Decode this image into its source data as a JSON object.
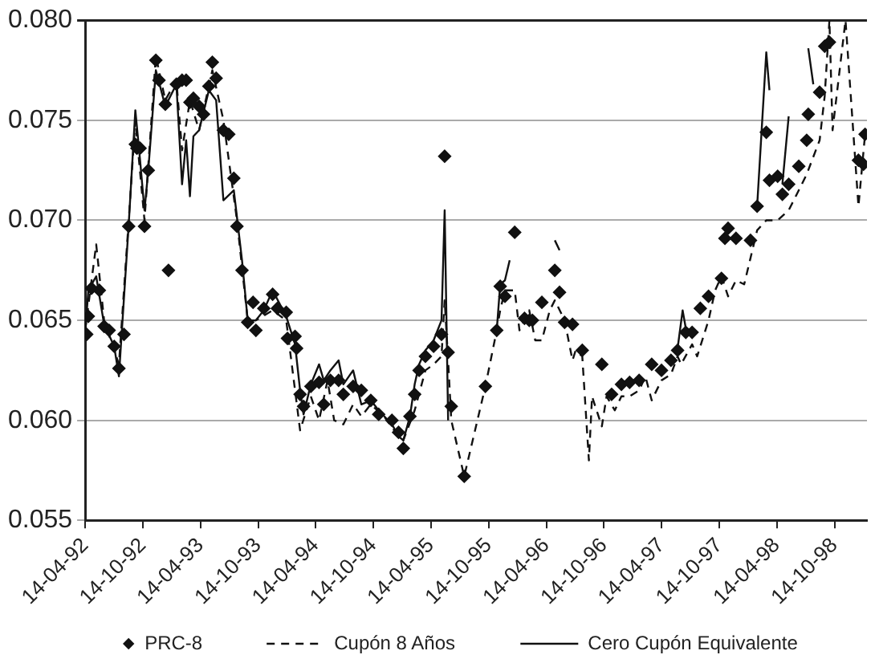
{
  "chart_data": {
    "type": "line",
    "xlim": [
      "1992-04-14",
      "1999-01-25"
    ],
    "xticks": [
      {
        "value": "1992-04-14",
        "label": "14-04-92"
      },
      {
        "value": "1992-10-14",
        "label": "14-10-92"
      },
      {
        "value": "1993-04-14",
        "label": "14-04-93"
      },
      {
        "value": "1993-10-14",
        "label": "14-10-93"
      },
      {
        "value": "1994-04-14",
        "label": "14-04-94"
      },
      {
        "value": "1994-10-14",
        "label": "14-10-94"
      },
      {
        "value": "1995-04-14",
        "label": "14-04-95"
      },
      {
        "value": "1995-10-14",
        "label": "14-10-95"
      },
      {
        "value": "1996-04-14",
        "label": "14-04-96"
      },
      {
        "value": "1996-10-14",
        "label": "14-10-96"
      },
      {
        "value": "1997-04-14",
        "label": "14-04-97"
      },
      {
        "value": "1997-10-14",
        "label": "14-10-97"
      },
      {
        "value": "1998-04-14",
        "label": "14-04-98"
      },
      {
        "value": "1998-10-14",
        "label": "14-10-98"
      }
    ],
    "ylim": [
      0.055,
      0.08
    ],
    "yticks": [
      {
        "value": 0.055,
        "label": "0.055"
      },
      {
        "value": 0.06,
        "label": "0.060"
      },
      {
        "value": 0.065,
        "label": "0.065"
      },
      {
        "value": 0.07,
        "label": "0.070"
      },
      {
        "value": 0.075,
        "label": "0.075"
      },
      {
        "value": 0.08,
        "label": "0.080"
      }
    ],
    "grid": "y",
    "legend": "bottom",
    "series": [
      {
        "name": "PRC-8",
        "type": "scatter",
        "marker": "diamond",
        "color": "#111111",
        "x": [
          "1992-04-19",
          "1992-04-24",
          "1992-05-04",
          "1992-05-29",
          "1992-06-13",
          "1992-06-29",
          "1992-07-15",
          "1992-07-30",
          "1992-08-15",
          "1992-08-30",
          "1992-09-20",
          "1992-09-25",
          "1992-10-05",
          "1992-10-19",
          "1992-10-31",
          "1992-11-24",
          "1992-12-04",
          "1992-12-24",
          "1993-01-03",
          "1993-01-28",
          "1993-02-15",
          "1993-02-28",
          "1993-03-12",
          "1993-03-23",
          "1993-04-10",
          "1993-04-24",
          "1993-05-11",
          "1993-05-22",
          "1993-06-03",
          "1993-06-26",
          "1993-07-13",
          "1993-07-29",
          "1993-08-08",
          "1993-08-24",
          "1993-09-11",
          "1993-09-28",
          "1993-10-07",
          "1993-11-01",
          "1993-11-29",
          "1993-12-14",
          "1994-01-11",
          "1994-01-15",
          "1994-02-08",
          "1994-02-13",
          "1994-02-24",
          "1994-03-07",
          "1994-03-30",
          "1994-04-25",
          "1994-05-10",
          "1994-05-31",
          "1994-06-26",
          "1994-07-11",
          "1994-08-11",
          "1994-09-06",
          "1994-10-06",
          "1994-10-31",
          "1994-12-12",
          "1995-01-02",
          "1995-01-17",
          "1995-02-07",
          "1995-02-22",
          "1995-03-08",
          "1995-03-28",
          "1995-04-23",
          "1995-05-18",
          "1995-05-28",
          "1995-06-08",
          "1995-06-18",
          "1995-07-29",
          "1995-10-04",
          "1995-11-09",
          "1995-11-20",
          "1995-12-05",
          "1996-01-05",
          "1996-02-05",
          "1996-02-20",
          "1996-03-01",
          "1996-03-31",
          "1996-05-11",
          "1996-05-26",
          "1996-06-11",
          "1996-07-06",
          "1996-08-06",
          "1996-10-07",
          "1996-11-07",
          "1996-12-08",
          "1997-01-03",
          "1997-02-02",
          "1997-03-14",
          "1997-04-14",
          "1997-05-14",
          "1997-06-04",
          "1997-06-30",
          "1997-07-20",
          "1997-08-15",
          "1997-09-10",
          "1997-10-21",
          "1997-11-01",
          "1997-11-11",
          "1997-12-06",
          "1998-01-21",
          "1998-02-11",
          "1998-03-12",
          "1998-03-22",
          "1998-04-17",
          "1998-05-02",
          "1998-05-22",
          "1998-06-23",
          "1998-07-18",
          "1998-07-23",
          "1998-08-28",
          "1998-09-13",
          "1998-09-28",
          "1998-12-29",
          "1999-01-14",
          "1999-01-19"
        ],
        "values": [
          0.0643,
          0.0652,
          0.0666,
          0.0665,
          0.0647,
          0.0645,
          0.0637,
          0.0626,
          0.0643,
          0.0697,
          0.0738,
          0.0736,
          0.0736,
          0.0697,
          0.0725,
          0.078,
          0.077,
          0.0758,
          0.0675,
          0.0768,
          0.077,
          0.077,
          0.0759,
          0.0761,
          0.0757,
          0.0753,
          0.0767,
          0.0779,
          0.0771,
          0.0745,
          0.0743,
          0.0721,
          0.0697,
          0.0675,
          0.0649,
          0.0659,
          0.0645,
          0.0656,
          0.0663,
          0.0656,
          0.0654,
          0.0641,
          0.0642,
          0.0636,
          0.0613,
          0.0607,
          0.0617,
          0.0619,
          0.0608,
          0.062,
          0.062,
          0.0613,
          0.0617,
          0.0615,
          0.061,
          0.0603,
          0.06,
          0.0594,
          0.0586,
          0.0602,
          0.0613,
          0.0625,
          0.0632,
          0.0637,
          0.0643,
          0.0732,
          0.0634,
          0.0607,
          0.0572,
          0.0617,
          0.0645,
          0.0667,
          0.0662,
          0.0694,
          0.0651,
          0.065,
          0.065,
          0.0659,
          0.0675,
          0.0664,
          0.0649,
          0.0648,
          0.0635,
          0.0628,
          0.0613,
          0.0618,
          0.0619,
          0.062,
          0.0628,
          0.0625,
          0.063,
          0.0635,
          0.0644,
          0.0644,
          0.0656,
          0.0662,
          0.0671,
          0.0691,
          0.0696,
          0.0691,
          0.069,
          0.0707,
          0.0744,
          0.072,
          0.0722,
          0.0713,
          0.0718,
          0.0727,
          0.074,
          0.0753,
          0.0764,
          0.0787,
          0.0789,
          0.073,
          0.0728,
          0.0743
        ]
      },
      {
        "name": "Cupón 8 Años",
        "type": "line",
        "line_style": "dashed",
        "marker": "none",
        "color": "#111111",
        "x": [
          "1992-04-14",
          "1992-05-19",
          "1992-06-13",
          "1992-07-30",
          "1992-08-30",
          "1992-09-20",
          "1992-10-19",
          "1992-11-24",
          "1992-12-24",
          "1993-01-28",
          "1993-02-15",
          "1993-03-12",
          "1993-04-10",
          "1993-05-22",
          "1993-06-26",
          "1993-08-08",
          "1993-09-11",
          "1993-10-07",
          "1993-11-29",
          "1994-01-11",
          "1994-02-24",
          "1994-03-30",
          "1994-04-25",
          "1994-05-22",
          "1994-06-12",
          "1994-07-11",
          "1994-08-11",
          "1994-09-06",
          "1994-10-06",
          "1994-11-17",
          "1995-01-02",
          "1995-01-17",
          "1995-02-22",
          "1995-03-28",
          "1995-04-23",
          "1995-05-18",
          "1995-05-28",
          "1995-06-08",
          "1995-06-18",
          "1995-07-29",
          "1995-10-04",
          "1995-11-09",
          "1995-11-20",
          "1995-12-05",
          "1996-01-05",
          "1996-01-20",
          "1996-02-20",
          "1996-03-10",
          "1996-03-31",
          "1996-04-25",
          "1996-05-11",
          "1996-06-11",
          "1996-07-06",
          "1996-07-16",
          "1996-08-06",
          "1996-08-27",
          "1996-09-06",
          "1996-10-07",
          "1996-10-22",
          "1996-11-17",
          "1996-12-08",
          "1997-01-03",
          "1997-02-02",
          "1997-02-22",
          "1997-03-14",
          "1997-04-14",
          "1997-05-14",
          "1997-06-04",
          "1997-06-15",
          "1997-07-20",
          "1997-08-05",
          "1997-09-10",
          "1997-10-01",
          "1997-10-21",
          "1997-11-11",
          "1997-12-06",
          "1998-01-01",
          "1998-02-11",
          "1998-03-12",
          "1998-04-17",
          "1998-05-22",
          "1998-06-23",
          "1998-07-18",
          "1998-08-28",
          "1998-09-13",
          "1998-09-28",
          "1998-10-08",
          "1998-11-18",
          "1998-12-29",
          "1999-01-19"
        ],
        "values": [
          0.0645,
          0.0688,
          0.065,
          0.0628,
          0.07,
          0.075,
          0.07,
          0.0782,
          0.076,
          0.077,
          0.0735,
          0.076,
          0.0745,
          0.0775,
          0.075,
          0.07,
          0.065,
          0.065,
          0.0655,
          0.065,
          0.0595,
          0.0612,
          0.06,
          0.062,
          0.06,
          0.0598,
          0.0608,
          0.0602,
          0.0608,
          0.0602,
          0.0592,
          0.059,
          0.0605,
          0.0625,
          0.0628,
          0.0632,
          0.066,
          0.063,
          0.06,
          0.0572,
          0.0617,
          0.0645,
          0.0655,
          0.0665,
          0.0665,
          0.0645,
          0.0655,
          0.064,
          0.064,
          0.0655,
          0.066,
          0.065,
          0.063,
          0.0635,
          0.0632,
          0.058,
          0.0612,
          0.0597,
          0.0612,
          0.0605,
          0.0612,
          0.0612,
          0.0615,
          0.0622,
          0.061,
          0.062,
          0.0623,
          0.0632,
          0.0628,
          0.0638,
          0.0632,
          0.065,
          0.0665,
          0.0672,
          0.0662,
          0.067,
          0.0668,
          0.0695,
          0.07,
          0.07,
          0.0705,
          0.0715,
          0.0723,
          0.074,
          0.0762,
          0.08,
          0.0745,
          0.08,
          0.0707,
          0.0743
        ]
      },
      {
        "name": "Cero Cupón Equivalente",
        "type": "line",
        "line_style": "solid",
        "marker": "none",
        "color": "#111111",
        "x": [
          "1992-04-14",
          "1992-04-24",
          "1992-05-19",
          "1992-06-13",
          "1992-07-15",
          "1992-07-30",
          "1992-08-30",
          "1992-09-20",
          "1992-10-05",
          "1992-10-19",
          "1992-10-31",
          "1992-11-24",
          "1992-12-24",
          "1993-01-28",
          "1993-02-15",
          "1993-02-28",
          "1993-03-12",
          "1993-03-23",
          "1993-04-10",
          "1993-05-11",
          "1993-06-03",
          "1993-06-26",
          "1993-07-29",
          "1993-08-24",
          "1993-09-11",
          "1993-10-07",
          "1993-11-01",
          "1993-11-29",
          "1994-01-11",
          "1994-02-08",
          "1994-02-24",
          "1994-03-07",
          "1994-03-30",
          "1994-04-25",
          "1994-05-10",
          "1994-05-31",
          "1994-06-26",
          "1994-07-11",
          "1994-08-11",
          "1994-09-06",
          "1994-10-06",
          "1994-10-31",
          "1994-12-12",
          "1995-01-02",
          "1995-01-17",
          "1995-02-07",
          "1995-02-22",
          "1995-03-08",
          "1995-03-28",
          "1995-04-23",
          "1995-05-18",
          "1995-05-28",
          "1995-06-08",
          "1995-07-01",
          "1995-11-09",
          "1995-11-20",
          "1995-12-05",
          "1995-12-20",
          "1996-02-01",
          "1996-05-11",
          "1996-05-26",
          "1996-09-01",
          "1997-06-04",
          "1997-06-20",
          "1997-06-30",
          "1997-07-20",
          "1997-10-01",
          "1998-02-11",
          "1998-03-12",
          "1998-03-22",
          "1998-04-10",
          "1998-05-02",
          "1998-05-22",
          "1998-06-15",
          "1998-07-23",
          "1998-08-08"
        ],
        "values": [
          0.0643,
          0.0665,
          0.0672,
          0.0648,
          0.0637,
          0.0622,
          0.0698,
          0.0755,
          0.073,
          0.0705,
          0.0725,
          0.0775,
          0.0757,
          0.0768,
          0.0718,
          0.074,
          0.0712,
          0.0742,
          0.0745,
          0.0765,
          0.076,
          0.071,
          0.0715,
          0.068,
          0.065,
          0.065,
          0.0655,
          0.0665,
          0.0652,
          0.0638,
          0.0615,
          0.0603,
          0.0618,
          0.0628,
          0.062,
          0.0625,
          0.063,
          0.0618,
          0.0625,
          0.0608,
          0.061,
          0.0605,
          0.0598,
          0.0592,
          0.059,
          0.0602,
          0.0618,
          0.0628,
          0.0635,
          0.064,
          0.065,
          0.0705,
          0.06,
          null,
          0.0645,
          0.0668,
          0.067,
          0.068,
          null,
          0.069,
          0.0685,
          null,
          0.0636,
          0.0655,
          0.0646,
          0.0645,
          null,
          0.0707,
          0.0784,
          0.0765,
          null,
          0.0718,
          0.0752,
          null,
          0.0786,
          0.0768
        ]
      }
    ]
  }
}
